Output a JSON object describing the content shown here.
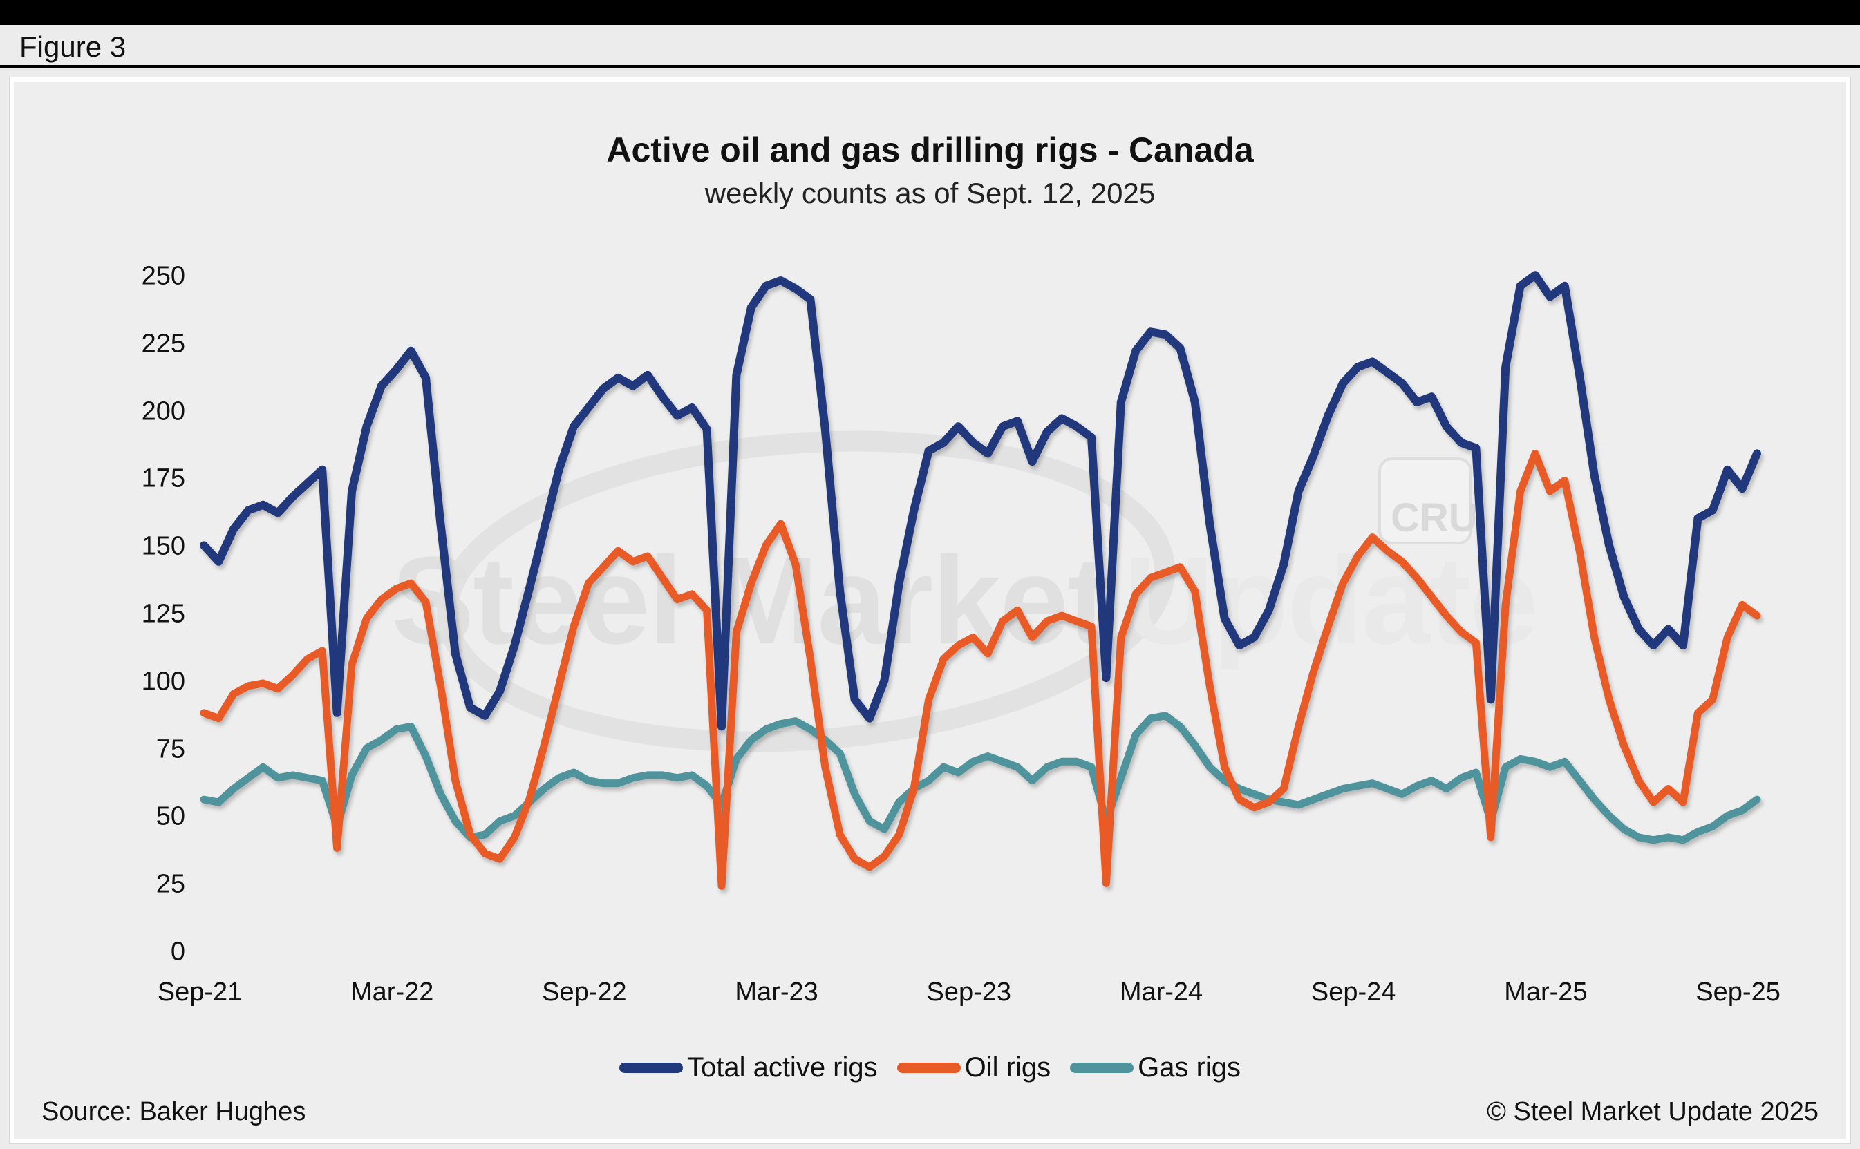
{
  "figure_label": "Figure 3",
  "watermark": {
    "text_main": "Steel Market",
    "text_sub": "Update",
    "badge": "CRU"
  },
  "footer": {
    "source": "Source: Baker Hughes",
    "copyright": "© Steel Market Update 2025"
  },
  "chart_data": {
    "type": "line",
    "title": "Active oil and gas drilling rigs - Canada",
    "subtitle": "weekly counts as of Sept. 12, 2025",
    "xlabel": "",
    "ylabel": "",
    "grid": false,
    "legend_position": "bottom",
    "x_unit": "weeks since Sep-2021, 2-week sampling",
    "week_step": 2,
    "x_tick_labels": [
      "Sep-21",
      "Mar-22",
      "Sep-22",
      "Mar-23",
      "Sep-23",
      "Mar-24",
      "Sep-24",
      "Mar-25",
      "Sep-25"
    ],
    "x_tick_weeks": [
      0,
      26,
      52,
      78,
      104,
      130,
      156,
      182,
      208
    ],
    "y_ticks": [
      0,
      25,
      50,
      75,
      100,
      125,
      150,
      175,
      200,
      225,
      250
    ],
    "ylim": [
      0,
      250
    ],
    "series": [
      {
        "name": "Total active rigs",
        "color": "#21387d",
        "values": [
          152,
          146,
          158,
          165,
          167,
          164,
          170,
          175,
          180,
          90,
          172,
          196,
          211,
          217,
          224,
          214,
          160,
          112,
          92,
          89,
          98,
          115,
          136,
          158,
          180,
          196,
          203,
          210,
          214,
          211,
          215,
          207,
          200,
          203,
          195,
          85,
          215,
          240,
          248,
          250,
          247,
          243,
          195,
          135,
          95,
          88,
          102,
          138,
          165,
          187,
          190,
          196,
          190,
          186,
          196,
          198,
          183,
          194,
          199,
          196,
          192,
          103,
          205,
          224,
          231,
          230,
          225,
          205,
          160,
          125,
          115,
          118,
          128,
          145,
          172,
          185,
          200,
          212,
          218,
          220,
          216,
          212,
          205,
          207,
          196,
          190,
          188,
          95,
          218,
          248,
          252,
          244,
          248,
          215,
          178,
          152,
          133,
          121,
          115,
          121,
          115,
          162,
          165,
          180,
          173,
          186
        ]
      },
      {
        "name": "Oil rigs",
        "color": "#e85b27",
        "values": [
          90,
          88,
          97,
          100,
          101,
          99,
          104,
          110,
          113,
          40,
          108,
          125,
          132,
          136,
          138,
          131,
          100,
          65,
          45,
          38,
          36,
          44,
          58,
          78,
          100,
          122,
          138,
          144,
          150,
          146,
          148,
          140,
          132,
          134,
          128,
          26,
          120,
          138,
          152,
          160,
          145,
          110,
          70,
          45,
          36,
          33,
          37,
          45,
          62,
          95,
          110,
          115,
          118,
          112,
          124,
          128,
          118,
          124,
          126,
          124,
          122,
          27,
          118,
          134,
          140,
          142,
          144,
          135,
          100,
          70,
          58,
          55,
          57,
          62,
          85,
          105,
          122,
          138,
          148,
          155,
          150,
          146,
          140,
          133,
          126,
          120,
          116,
          44,
          130,
          172,
          186,
          172,
          176,
          150,
          118,
          95,
          78,
          65,
          57,
          62,
          57,
          90,
          95,
          118,
          130,
          126
        ]
      },
      {
        "name": "Gas rigs",
        "color": "#4f949c",
        "values": [
          58,
          57,
          62,
          66,
          70,
          66,
          67,
          66,
          65,
          48,
          67,
          77,
          80,
          84,
          85,
          74,
          60,
          50,
          44,
          45,
          50,
          52,
          57,
          62,
          66,
          68,
          65,
          64,
          64,
          66,
          67,
          67,
          66,
          67,
          63,
          56,
          73,
          80,
          84,
          86,
          87,
          84,
          80,
          75,
          60,
          50,
          47,
          57,
          62,
          65,
          70,
          68,
          72,
          74,
          72,
          70,
          65,
          70,
          72,
          72,
          70,
          50,
          66,
          82,
          88,
          89,
          85,
          78,
          70,
          65,
          62,
          60,
          58,
          57,
          56,
          58,
          60,
          62,
          63,
          64,
          62,
          60,
          63,
          65,
          62,
          66,
          68,
          50,
          70,
          73,
          72,
          70,
          72,
          65,
          58,
          52,
          47,
          44,
          43,
          44,
          43,
          46,
          48,
          52,
          54,
          58
        ]
      }
    ]
  }
}
